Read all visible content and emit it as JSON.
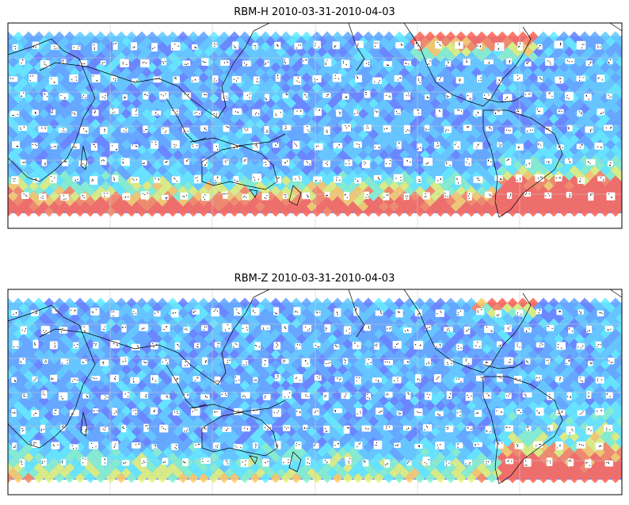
{
  "panels": [
    {
      "title": "RBM-H 2010-03-31-2010-04-03"
    },
    {
      "title": "RBM-Z 2010-03-31-2010-04-03"
    }
  ]
}
